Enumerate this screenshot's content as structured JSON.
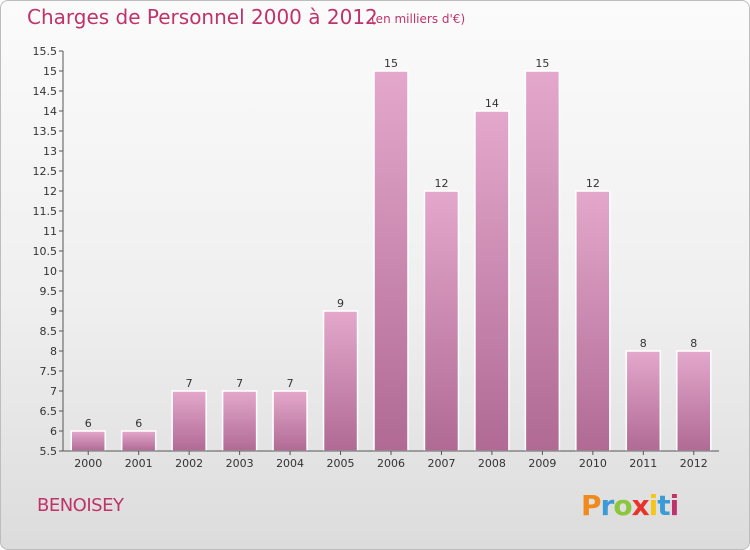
{
  "header": {
    "title": "Charges de Personnel 2000 à 2012",
    "unit_note": "(en milliers d'€)"
  },
  "footer": {
    "commune": "BENOISEY",
    "logo": [
      "P",
      "r",
      "o",
      "x",
      "i",
      "t",
      "i"
    ],
    "logo_colors": [
      "#f08a1c",
      "#3b9bd6",
      "#8cc63f",
      "#e8332a",
      "#f5c518",
      "#3b9bd6",
      "#c0336a"
    ]
  },
  "colors": {
    "bar_top": "#e4a8cc",
    "bar_bottom": "#b06a94",
    "title": "#c0336a"
  },
  "chart_data": {
    "type": "bar",
    "title": "Charges de Personnel 2000 à 2012",
    "subtitle": "(en milliers d'€)",
    "categories": [
      "2000",
      "2001",
      "2002",
      "2003",
      "2004",
      "2005",
      "2006",
      "2007",
      "2008",
      "2009",
      "2010",
      "2011",
      "2012"
    ],
    "values": [
      6,
      6,
      7,
      7,
      7,
      9,
      15,
      12,
      14,
      15,
      12,
      8,
      8
    ],
    "ylim": [
      5.5,
      15.5
    ],
    "yticks": [
      "5.5",
      "6",
      "6.5",
      "7",
      "7.5",
      "8",
      "8.5",
      "9",
      "9.5",
      "10",
      "10.5",
      "11",
      "11.5",
      "12",
      "12.5",
      "13",
      "13.5",
      "14",
      "14.5",
      "15",
      "15.5"
    ],
    "grid": false,
    "legend": "none"
  }
}
